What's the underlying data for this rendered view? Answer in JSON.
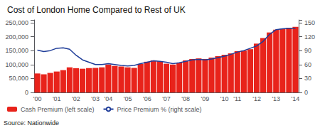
{
  "chart_data": {
    "type": "bar",
    "title": "Cost of London Home Compared to Rest of UK",
    "annotations": [
      "Source: Nationwide"
    ],
    "categories": [
      "'00",
      null,
      null,
      "'01",
      null,
      null,
      "'02",
      null,
      null,
      "'03",
      null,
      "'04",
      null,
      null,
      "'05",
      null,
      null,
      "'06",
      null,
      null,
      "'07",
      null,
      null,
      "'08",
      null,
      null,
      "'09",
      null,
      null,
      "'10",
      null,
      "'11",
      null,
      null,
      "'12",
      null,
      null,
      "'13",
      null,
      null,
      "'14"
    ],
    "series": [
      {
        "name": "Cash Premium (left scale)",
        "type": "bar",
        "color": "#e8231b",
        "values": [
          68000,
          65000,
          70000,
          75000,
          80000,
          90000,
          87000,
          85000,
          87000,
          88000,
          90000,
          100000,
          95000,
          93000,
          90000,
          88000,
          102000,
          110000,
          115000,
          112000,
          103000,
          100000,
          107000,
          115000,
          120000,
          122000,
          120000,
          125000,
          130000,
          135000,
          140000,
          148000,
          150000,
          155000,
          175000,
          195000,
          215000,
          225000,
          228000,
          232000,
          235000
        ]
      },
      {
        "name": "Price Premium % (right scale)",
        "type": "line",
        "color": "#1f3d99",
        "axis": "y2",
        "values": [
          91,
          88,
          90,
          95,
          96,
          93,
          80,
          70,
          65,
          60,
          60,
          62,
          60,
          58,
          57,
          58,
          62,
          65,
          68,
          67,
          65,
          62,
          64,
          67,
          70,
          71,
          70,
          72,
          75,
          78,
          82,
          87,
          90,
          95,
          100,
          110,
          125,
          135,
          137,
          138,
          138
        ]
      }
    ],
    "ylim": [
      0,
      260000
    ],
    "yticks": [
      0,
      {
        "value": 50000,
        "label": "50,000"
      },
      {
        "value": 100000,
        "label": "100,000"
      },
      {
        "value": 150000,
        "label": "150,000"
      },
      {
        "value": 200000,
        "label": "200,000"
      },
      {
        "value": 250000,
        "label": "250,000"
      }
    ],
    "y2lim": [
      0,
      156
    ],
    "y2ticks": [
      0,
      30,
      60,
      90,
      120,
      150
    ],
    "grid": false,
    "legend": "bottom"
  }
}
